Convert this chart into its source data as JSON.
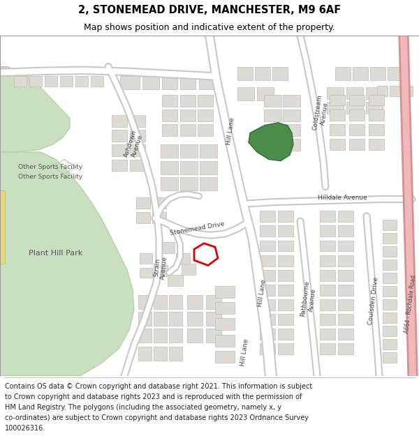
{
  "title_line1": "2, STONEMEAD DRIVE, MANCHESTER, M9 6AF",
  "title_line2": "Map shows position and indicative extent of the property.",
  "footer_text": "Contains OS data © Crown copyright and database right 2021. This information is subject to Crown copyright and database rights 2023 and is reproduced with the permission of HM Land Registry. The polygons (including the associated geometry, namely x, y co-ordinates) are subject to Crown copyright and database rights 2023 Ordnance Survey 100026316.",
  "bg_color": "#ffffff",
  "map_bg": "#f0ede8",
  "road_color": "#ffffff",
  "road_casing": "#c8c8c8",
  "building_fill": "#dedad5",
  "building_stroke": "#c0bbb5",
  "park_fill": "#c8dfc0",
  "park_stroke": "#b0cc98",
  "highlight_fill": "#4a8c4a",
  "highlight_stroke": "#3a6c3a",
  "plot_stroke": "#dd0000",
  "road_pink_fill": "#f0b8b8",
  "road_pink_stroke": "#d89090",
  "yellow_fill": "#e8d870",
  "yellow_stroke": "#c8b840",
  "title_fontsize": 10.5,
  "subtitle_fontsize": 9,
  "footer_fontsize": 7,
  "label_fontsize": 6.5,
  "label_color": "#444444"
}
